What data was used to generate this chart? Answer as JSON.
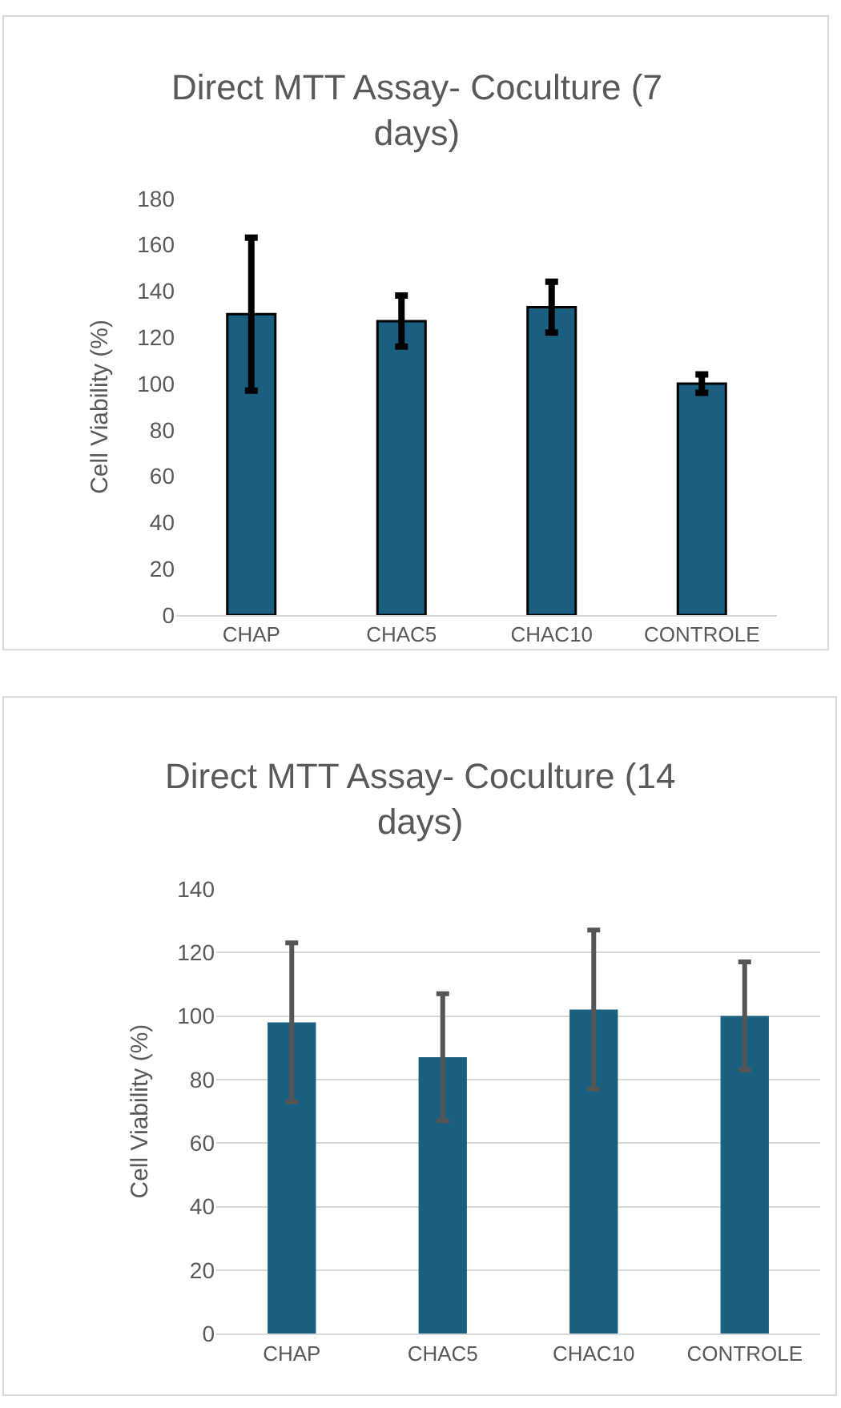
{
  "chart_data": [
    {
      "type": "bar",
      "title": "Direct MTT Assay- Coculture (7 days)",
      "ylabel": "Cell Viability (%)",
      "categories": [
        "CHAP",
        "CHAC5",
        "CHAC10",
        "CONTROLE"
      ],
      "series": [
        {
          "color": "#1a5f80",
          "values": [
            130,
            127,
            133,
            100
          ],
          "errors": [
            33,
            11,
            11,
            4
          ]
        }
      ],
      "ylim": [
        0,
        180
      ],
      "yticks": [
        0,
        20,
        40,
        60,
        80,
        100,
        120,
        140,
        160,
        180
      ],
      "grid": false
    },
    {
      "type": "bar",
      "title": "Direct MTT Assay- Coculture (14 days)",
      "ylabel": "Cell Viability (%)",
      "categories": [
        "CHAP",
        "CHAC5",
        "CHAC10",
        "CONTROLE"
      ],
      "series": [
        {
          "color": "#1a5f80",
          "values": [
            98,
            87,
            102,
            100
          ],
          "errors": [
            25,
            20,
            25,
            17
          ]
        }
      ],
      "ylim": [
        0,
        140
      ],
      "yticks": [
        0,
        20,
        40,
        60,
        80,
        100,
        120,
        140
      ],
      "grid": "y"
    }
  ]
}
